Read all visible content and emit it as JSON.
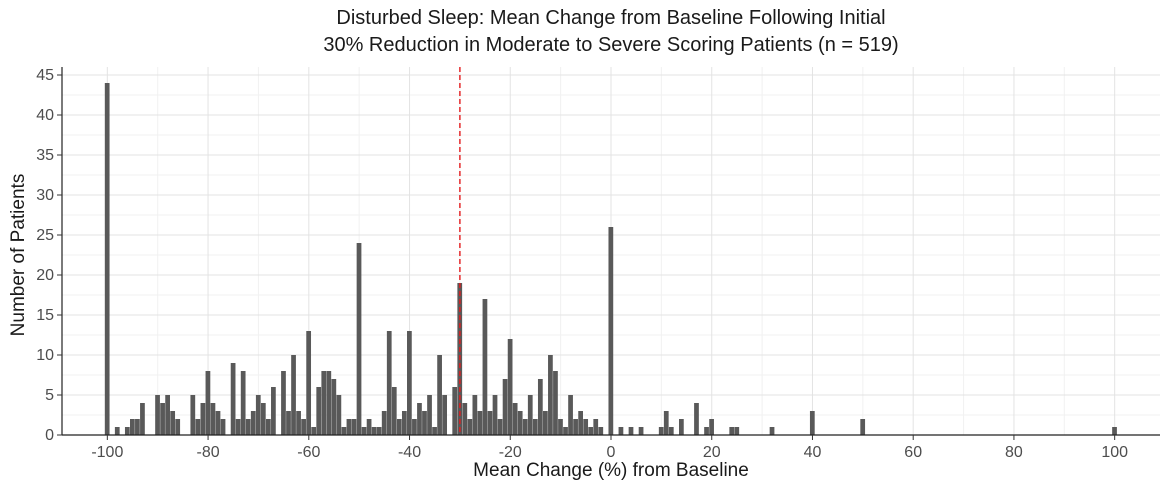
{
  "chart_data": {
    "type": "bar",
    "title_lines": [
      "Disturbed Sleep: Mean Change from Baseline Following Initial",
      "30% Reduction in Moderate to Severe Scoring Patients (n = 519)"
    ],
    "xlabel": "Mean Change (%) from Baseline",
    "ylabel": "Number of Patients",
    "xlim": [
      -109,
      109
    ],
    "ylim": [
      0,
      46
    ],
    "x_ticks": [
      -100,
      -80,
      -60,
      -40,
      -20,
      0,
      20,
      40,
      60,
      80,
      100
    ],
    "y_ticks": [
      0,
      5,
      10,
      15,
      20,
      25,
      30,
      35,
      40,
      45
    ],
    "grid": true,
    "bar_color": "#595959",
    "reference_line": {
      "x": -30,
      "color": "#e31a1c",
      "style": "dashed"
    },
    "x": [
      -100,
      -98,
      -96,
      -95,
      -94,
      -93,
      -90,
      -89,
      -88,
      -87,
      -86,
      -83,
      -82,
      -81,
      -80,
      -79,
      -78,
      -77,
      -75,
      -74,
      -73,
      -72,
      -71,
      -70,
      -69,
      -68,
      -67,
      -65,
      -64,
      -63,
      -62,
      -61,
      -60,
      -59,
      -58,
      -57,
      -56,
      -55,
      -54,
      -53,
      -52,
      -51,
      -50,
      -49,
      -48,
      -47,
      -46,
      -45,
      -44,
      -43,
      -42,
      -41,
      -40,
      -39,
      -38,
      -37,
      -36,
      -35,
      -34,
      -33,
      -31,
      -30,
      -29,
      -28,
      -27,
      -26,
      -25,
      -24,
      -23,
      -22,
      -21,
      -20,
      -19,
      -18,
      -17,
      -16,
      -15,
      -14,
      -13,
      -12,
      -11,
      -10,
      -9,
      -8,
      -7,
      -6,
      -5,
      -4,
      -3,
      -2,
      0,
      2,
      4,
      6,
      10,
      11,
      12,
      14,
      17,
      19,
      20,
      24,
      25,
      32,
      40,
      50,
      100
    ],
    "values": [
      44,
      1,
      1,
      2,
      2,
      4,
      5,
      4,
      5,
      3,
      2,
      5,
      2,
      4,
      8,
      4,
      3,
      2,
      9,
      2,
      8,
      2,
      3,
      5,
      4,
      2,
      6,
      8,
      3,
      10,
      3,
      2,
      13,
      1,
      6,
      8,
      8,
      7,
      5,
      1,
      2,
      2,
      24,
      1,
      2,
      1,
      1,
      3,
      13,
      6,
      2,
      3,
      13,
      2,
      4,
      3,
      5,
      1,
      10,
      5,
      6,
      19,
      4,
      2,
      5,
      3,
      17,
      3,
      5,
      2,
      7,
      12,
      4,
      3,
      2,
      5,
      2,
      7,
      3,
      10,
      8,
      2,
      1,
      5,
      2,
      3,
      2,
      1,
      2,
      1,
      26,
      1,
      1,
      1,
      1,
      3,
      1,
      2,
      4,
      1,
      2,
      1,
      1,
      1,
      3,
      2,
      1
    ]
  }
}
